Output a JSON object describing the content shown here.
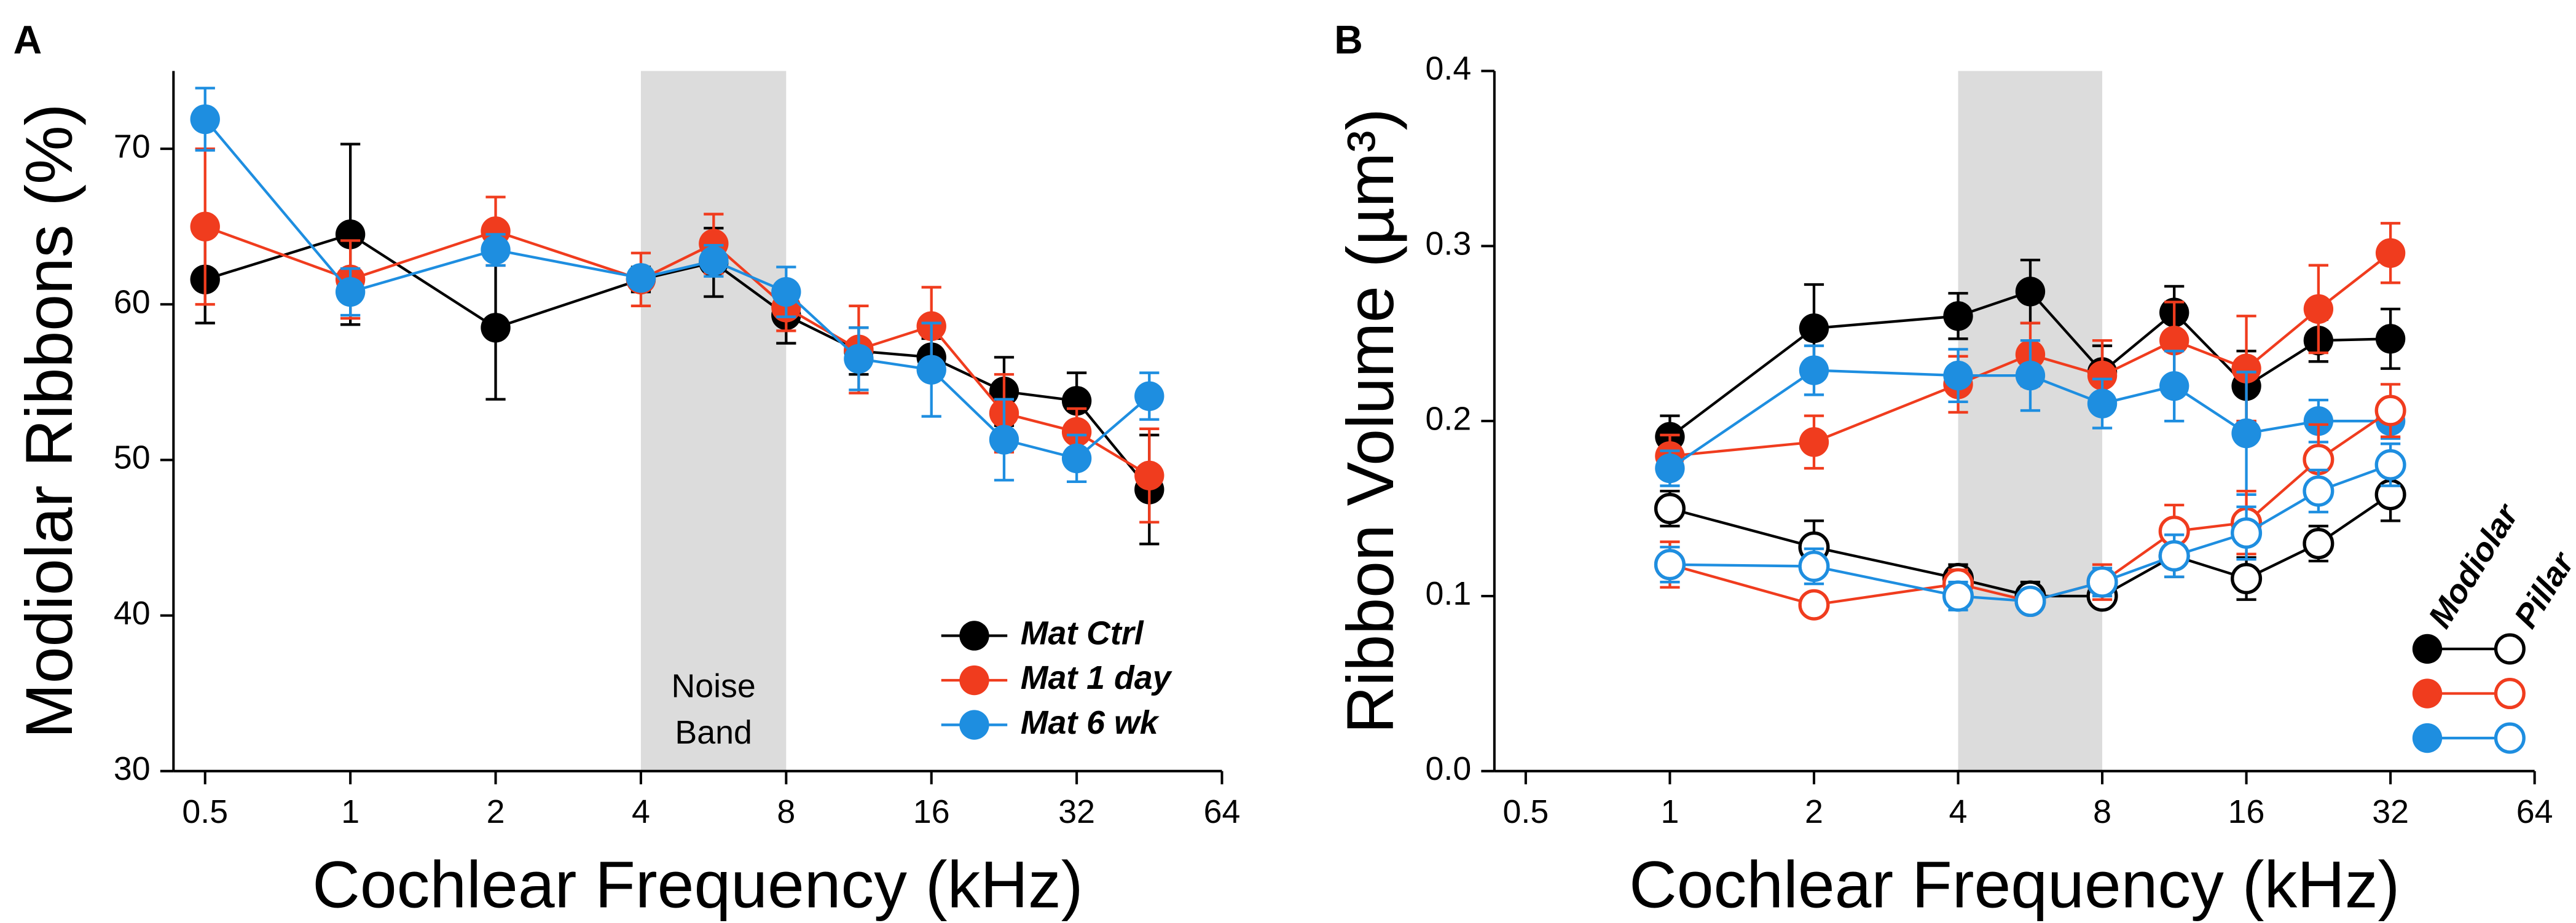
{
  "chart_data": [
    {
      "type": "line",
      "panel_label": "A",
      "xlabel": "Cochlear Frequency (kHz)",
      "ylabel": "Modiolar Ribbons (%)",
      "xlog": true,
      "xlim": [
        0.43,
        64
      ],
      "xticks": [
        0.5,
        1,
        2,
        4,
        8,
        16,
        32,
        64
      ],
      "ylim": [
        30,
        75
      ],
      "yticks": [
        30,
        40,
        50,
        60,
        70
      ],
      "band": [
        4,
        8
      ],
      "band_label_lines": [
        "Noise",
        "Band"
      ],
      "legend": "lower right",
      "x": [
        0.5,
        1,
        2,
        4,
        5.66,
        8,
        11.31,
        16,
        22.63,
        32,
        45.25
      ],
      "series": [
        {
          "name": "Mat Ctrl",
          "color": "#000000",
          "filled": true,
          "values": [
            61.6,
            64.5,
            58.5,
            61.6,
            62.7,
            59.3,
            57.0,
            56.6,
            54.4,
            53.8,
            48.1
          ],
          "errors": [
            2.8,
            5.8,
            4.6,
            0.8,
            2.2,
            1.8,
            1.5,
            1.2,
            2.2,
            1.8,
            3.5
          ]
        },
        {
          "name": "Mat 1 day",
          "color": "#f03c1e",
          "filled": true,
          "values": [
            65.0,
            61.6,
            64.7,
            61.6,
            63.9,
            59.8,
            57.1,
            58.6,
            53.0,
            51.8,
            49.0
          ],
          "errors": [
            5.0,
            2.5,
            2.2,
            1.7,
            1.9,
            1.5,
            2.8,
            2.5,
            2.5,
            1.5,
            3.0
          ]
        },
        {
          "name": "Mat 6 wk",
          "color": "#1e8ee0",
          "filled": true,
          "values": [
            71.9,
            60.8,
            63.5,
            61.7,
            62.8,
            60.8,
            56.5,
            55.8,
            51.3,
            50.1,
            54.1
          ],
          "errors": [
            2.0,
            1.5,
            1.0,
            0.6,
            1.0,
            1.6,
            2.0,
            3.0,
            2.6,
            1.5,
            1.5
          ]
        }
      ]
    },
    {
      "type": "line",
      "panel_label": "B",
      "xlabel": "Cochlear Frequency (kHz)",
      "ylabel": "Ribbon Volume (µm³)",
      "xlog": true,
      "xlim": [
        0.43,
        64
      ],
      "xticks": [
        0.5,
        1,
        2,
        4,
        8,
        16,
        32,
        64
      ],
      "ylim": [
        0,
        0.4
      ],
      "yticks": [
        {
          "value": 0,
          "label": "0.0"
        },
        0.1,
        0.2,
        0.3,
        0.4
      ],
      "band": [
        4,
        8
      ],
      "legend": "lower right",
      "legend_headers": [
        "Modiolar",
        "Pillar"
      ],
      "x": [
        1,
        2,
        4,
        5.66,
        8,
        11.31,
        16,
        22.63,
        32
      ],
      "series": [
        {
          "color": "#000000",
          "filled": true,
          "values": [
            0.191,
            0.253,
            0.26,
            0.274,
            0.228,
            0.262,
            0.22,
            0.246,
            0.247
          ],
          "errors": [
            0.012,
            0.025,
            0.013,
            0.018,
            0.015,
            0.015,
            0.02,
            0.012,
            0.017
          ]
        },
        {
          "color": "#f03c1e",
          "filled": true,
          "values": [
            0.18,
            0.188,
            0.221,
            0.238,
            0.226,
            0.246,
            0.23,
            0.264,
            0.296
          ],
          "errors": [
            0.012,
            0.015,
            0.016,
            0.018,
            0.02,
            0.022,
            0.03,
            0.025,
            0.017
          ]
        },
        {
          "color": "#1e8ee0",
          "filled": true,
          "values": [
            0.173,
            0.229,
            0.226,
            0.226,
            0.21,
            0.22,
            0.193,
            0.2,
            0.2
          ],
          "errors": [
            0.01,
            0.014,
            0.015,
            0.02,
            0.014,
            0.02,
            0.035,
            0.012,
            0.01
          ]
        },
        {
          "color": "#000000",
          "filled": false,
          "values": [
            0.15,
            0.128,
            0.11,
            0.1,
            0.1,
            0.123,
            0.11,
            0.13,
            0.158
          ],
          "errors": [
            0.01,
            0.015,
            0.008,
            0.008,
            0.006,
            0.012,
            0.012,
            0.01,
            0.015
          ]
        },
        {
          "color": "#f03c1e",
          "filled": false,
          "values": [
            0.118,
            0.095,
            0.107,
            0.097,
            0.108,
            0.137,
            0.142,
            0.178,
            0.206
          ],
          "errors": [
            0.013,
            0.005,
            0.008,
            0.005,
            0.01,
            0.015,
            0.018,
            0.02,
            0.015
          ]
        },
        {
          "color": "#1e8ee0",
          "filled": false,
          "values": [
            0.118,
            0.117,
            0.1,
            0.097,
            0.108,
            0.123,
            0.136,
            0.16,
            0.175
          ],
          "errors": [
            0.01,
            0.01,
            0.008,
            0.006,
            0.008,
            0.012,
            0.015,
            0.012,
            0.012
          ]
        }
      ]
    }
  ]
}
